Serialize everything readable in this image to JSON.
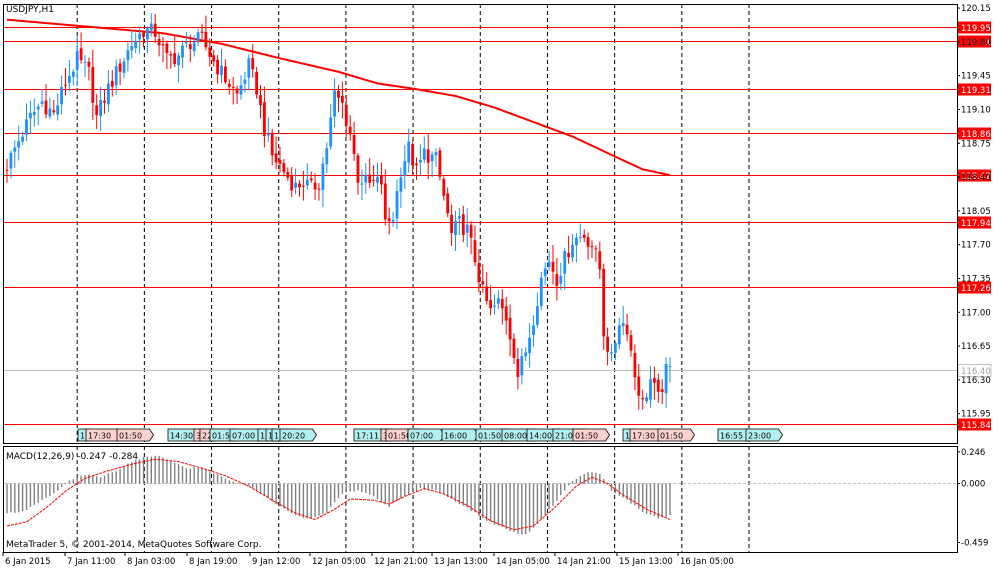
{
  "symbol_label": "USDJPY,H1",
  "copyright": "MetaTrader 5, © 2001-2014, MetaQuotes Software Corp.",
  "colors": {
    "background": "#ffffff",
    "frame": "#000000",
    "bull_candle": "#1e90ff",
    "bear_candle": "#ff0000",
    "moving_average": "#ff0000",
    "level_line": "#ff0000",
    "current_price_line": "#c0c0c0",
    "macd_histogram": "#808080",
    "macd_signal": "#ff0000",
    "event_bull": "#b4f0f0",
    "event_bear": "#ffd2d2"
  },
  "chart_data": [
    {
      "type": "candlestick",
      "title": "USDJPY,H1",
      "xlabel": "",
      "ylabel": "",
      "ylim": [
        115.72,
        120.22
      ],
      "grid": true,
      "y_ticks": [
        "120.15",
        "119.80",
        "119.45",
        "119.10",
        "118.75",
        "118.40",
        "118.05",
        "117.70",
        "117.35",
        "117.00",
        "116.65",
        "116.30",
        "115.95"
      ],
      "x_ticks": [
        "6 Jan 2015",
        "7 Jan 11:00",
        "8 Jan 03:00",
        "8 Jan 19:00",
        "9 Jan 12:00",
        "12 Jan 05:00",
        "12 Jan 21:00",
        "13 Jan 13:00",
        "14 Jan 05:00",
        "14 Jan 21:00",
        "15 Jan 13:00",
        "16 Jan 05:00"
      ],
      "price_levels": [
        "119.95",
        "119.81",
        "119.31",
        "118.86",
        "118.42",
        "117.94",
        "117.26",
        "115.84"
      ],
      "current_price": "116.40",
      "anchors": [
        {
          "bar": 0,
          "value": 118.52
        },
        {
          "bar": 3,
          "value": 118.78
        },
        {
          "bar": 6,
          "value": 119.02
        },
        {
          "bar": 9,
          "value": 119.18
        },
        {
          "bar": 12,
          "value": 119.05
        },
        {
          "bar": 15,
          "value": 119.38
        },
        {
          "bar": 18,
          "value": 119.62
        },
        {
          "bar": 21,
          "value": 119.48
        },
        {
          "bar": 23,
          "value": 119.02
        },
        {
          "bar": 26,
          "value": 119.32
        },
        {
          "bar": 29,
          "value": 119.55
        },
        {
          "bar": 32,
          "value": 119.78
        },
        {
          "bar": 35,
          "value": 119.92
        },
        {
          "bar": 38,
          "value": 119.9
        },
        {
          "bar": 41,
          "value": 119.62
        },
        {
          "bar": 44,
          "value": 119.66
        },
        {
          "bar": 47,
          "value": 119.8
        },
        {
          "bar": 50,
          "value": 119.82
        },
        {
          "bar": 53,
          "value": 119.6
        },
        {
          "bar": 56,
          "value": 119.42
        },
        {
          "bar": 59,
          "value": 119.25
        },
        {
          "bar": 62,
          "value": 119.55
        },
        {
          "bar": 64,
          "value": 119.32
        },
        {
          "bar": 66,
          "value": 118.9
        },
        {
          "bar": 68,
          "value": 118.62
        },
        {
          "bar": 70,
          "value": 118.52
        },
        {
          "bar": 72,
          "value": 118.4
        },
        {
          "bar": 74,
          "value": 118.3
        },
        {
          "bar": 76,
          "value": 118.35
        },
        {
          "bar": 78,
          "value": 118.28
        },
        {
          "bar": 80,
          "value": 118.35
        },
        {
          "bar": 82,
          "value": 118.72
        },
        {
          "bar": 84,
          "value": 119.25
        },
        {
          "bar": 86,
          "value": 119.15
        },
        {
          "bar": 88,
          "value": 118.85
        },
        {
          "bar": 90,
          "value": 118.4
        },
        {
          "bar": 93,
          "value": 118.32
        },
        {
          "bar": 96,
          "value": 118.35
        },
        {
          "bar": 97,
          "value": 117.9
        },
        {
          "bar": 99,
          "value": 118.0
        },
        {
          "bar": 101,
          "value": 118.48
        },
        {
          "bar": 103,
          "value": 118.7
        },
        {
          "bar": 105,
          "value": 118.45
        },
        {
          "bar": 107,
          "value": 118.65
        },
        {
          "bar": 110,
          "value": 118.58
        },
        {
          "bar": 112,
          "value": 118.2
        },
        {
          "bar": 114,
          "value": 117.8
        },
        {
          "bar": 116,
          "value": 117.92
        },
        {
          "bar": 118,
          "value": 117.85
        },
        {
          "bar": 120,
          "value": 117.55
        },
        {
          "bar": 122,
          "value": 117.2
        },
        {
          "bar": 124,
          "value": 117.0
        },
        {
          "bar": 126,
          "value": 117.1
        },
        {
          "bar": 128,
          "value": 116.95
        },
        {
          "bar": 130,
          "value": 116.6
        },
        {
          "bar": 131,
          "value": 116.35
        },
        {
          "bar": 133,
          "value": 116.6
        },
        {
          "bar": 135,
          "value": 116.95
        },
        {
          "bar": 137,
          "value": 117.35
        },
        {
          "bar": 139,
          "value": 117.55
        },
        {
          "bar": 141,
          "value": 117.35
        },
        {
          "bar": 143,
          "value": 117.55
        },
        {
          "bar": 145,
          "value": 117.75
        },
        {
          "bar": 148,
          "value": 117.8
        },
        {
          "bar": 150,
          "value": 117.7
        },
        {
          "bar": 152,
          "value": 117.45
        },
        {
          "bar": 153,
          "value": 116.8
        },
        {
          "bar": 155,
          "value": 116.5
        },
        {
          "bar": 157,
          "value": 116.92
        },
        {
          "bar": 159,
          "value": 116.85
        },
        {
          "bar": 161,
          "value": 116.35
        },
        {
          "bar": 163,
          "value": 116.05
        },
        {
          "bar": 165,
          "value": 116.3
        },
        {
          "bar": 167,
          "value": 116.1
        },
        {
          "bar": 169,
          "value": 116.38
        },
        {
          "bar": 170,
          "value": 116.4
        }
      ],
      "moving_average": [
        {
          "bar": 0,
          "value": 120.03
        },
        {
          "bar": 20,
          "value": 119.96
        },
        {
          "bar": 40,
          "value": 119.89
        },
        {
          "bar": 55,
          "value": 119.78
        },
        {
          "bar": 70,
          "value": 119.63
        },
        {
          "bar": 85,
          "value": 119.49
        },
        {
          "bar": 95,
          "value": 119.37
        },
        {
          "bar": 105,
          "value": 119.31
        },
        {
          "bar": 115,
          "value": 119.24
        },
        {
          "bar": 125,
          "value": 119.12
        },
        {
          "bar": 135,
          "value": 118.97
        },
        {
          "bar": 145,
          "value": 118.82
        },
        {
          "bar": 155,
          "value": 118.63
        },
        {
          "bar": 163,
          "value": 118.48
        },
        {
          "bar": 170,
          "value": 118.42
        }
      ]
    },
    {
      "type": "bar",
      "title": "MACD(12,26,9) -0.247 -0.284",
      "xlabel": "",
      "ylabel": "",
      "ylim": [
        -0.459,
        0.246
      ],
      "y_ticks": [
        "0.246",
        "0.000",
        "-0.459"
      ],
      "histogram_anchors": [
        {
          "bar": 0,
          "value": -0.23
        },
        {
          "bar": 4,
          "value": -0.22
        },
        {
          "bar": 8,
          "value": -0.15
        },
        {
          "bar": 12,
          "value": -0.08
        },
        {
          "bar": 16,
          "value": 0.02
        },
        {
          "bar": 20,
          "value": 0.07
        },
        {
          "bar": 24,
          "value": 0.05
        },
        {
          "bar": 28,
          "value": 0.1
        },
        {
          "bar": 32,
          "value": 0.17
        },
        {
          "bar": 36,
          "value": 0.21
        },
        {
          "bar": 38,
          "value": 0.22
        },
        {
          "bar": 42,
          "value": 0.18
        },
        {
          "bar": 46,
          "value": 0.12
        },
        {
          "bar": 50,
          "value": 0.12
        },
        {
          "bar": 54,
          "value": 0.07
        },
        {
          "bar": 58,
          "value": 0.01
        },
        {
          "bar": 62,
          "value": -0.02
        },
        {
          "bar": 66,
          "value": -0.09
        },
        {
          "bar": 70,
          "value": -0.18
        },
        {
          "bar": 74,
          "value": -0.25
        },
        {
          "bar": 78,
          "value": -0.28
        },
        {
          "bar": 82,
          "value": -0.22
        },
        {
          "bar": 86,
          "value": -0.08
        },
        {
          "bar": 90,
          "value": -0.05
        },
        {
          "bar": 94,
          "value": -0.1
        },
        {
          "bar": 98,
          "value": -0.18
        },
        {
          "bar": 102,
          "value": -0.1
        },
        {
          "bar": 106,
          "value": -0.04
        },
        {
          "bar": 110,
          "value": -0.05
        },
        {
          "bar": 114,
          "value": -0.12
        },
        {
          "bar": 118,
          "value": -0.19
        },
        {
          "bar": 122,
          "value": -0.27
        },
        {
          "bar": 126,
          "value": -0.33
        },
        {
          "bar": 130,
          "value": -0.38
        },
        {
          "bar": 133,
          "value": -0.4
        },
        {
          "bar": 137,
          "value": -0.28
        },
        {
          "bar": 141,
          "value": -0.13
        },
        {
          "bar": 145,
          "value": 0.02
        },
        {
          "bar": 149,
          "value": 0.09
        },
        {
          "bar": 152,
          "value": 0.08
        },
        {
          "bar": 155,
          "value": -0.06
        },
        {
          "bar": 159,
          "value": -0.13
        },
        {
          "bar": 163,
          "value": -0.22
        },
        {
          "bar": 167,
          "value": -0.27
        },
        {
          "bar": 170,
          "value": -0.25
        }
      ],
      "signal_anchors": [
        {
          "bar": 0,
          "value": -0.33
        },
        {
          "bar": 5,
          "value": -0.3
        },
        {
          "bar": 10,
          "value": -0.19
        },
        {
          "bar": 15,
          "value": -0.06
        },
        {
          "bar": 20,
          "value": 0.04
        },
        {
          "bar": 26,
          "value": 0.1
        },
        {
          "bar": 32,
          "value": 0.15
        },
        {
          "bar": 38,
          "value": 0.19
        },
        {
          "bar": 44,
          "value": 0.17
        },
        {
          "bar": 50,
          "value": 0.12
        },
        {
          "bar": 56,
          "value": 0.06
        },
        {
          "bar": 62,
          "value": -0.02
        },
        {
          "bar": 68,
          "value": -0.13
        },
        {
          "bar": 74,
          "value": -0.23
        },
        {
          "bar": 79,
          "value": -0.28
        },
        {
          "bar": 84,
          "value": -0.2
        },
        {
          "bar": 88,
          "value": -0.12
        },
        {
          "bar": 94,
          "value": -0.13
        },
        {
          "bar": 98,
          "value": -0.16
        },
        {
          "bar": 102,
          "value": -0.1
        },
        {
          "bar": 107,
          "value": -0.04
        },
        {
          "bar": 112,
          "value": -0.08
        },
        {
          "bar": 118,
          "value": -0.17
        },
        {
          "bar": 124,
          "value": -0.29
        },
        {
          "bar": 130,
          "value": -0.36
        },
        {
          "bar": 135,
          "value": -0.33
        },
        {
          "bar": 140,
          "value": -0.2
        },
        {
          "bar": 146,
          "value": -0.02
        },
        {
          "bar": 150,
          "value": 0.05
        },
        {
          "bar": 154,
          "value": 0.0
        },
        {
          "bar": 158,
          "value": -0.09
        },
        {
          "bar": 164,
          "value": -0.2
        },
        {
          "bar": 170,
          "value": -0.28
        }
      ]
    }
  ],
  "events": [
    {
      "text": "1",
      "kind": "bull"
    },
    {
      "text": "17:30",
      "kind": "bear"
    },
    {
      "text": "01:50",
      "kind": "bear"
    },
    {
      "text": "14:30",
      "kind": "bull"
    },
    {
      "text": "3",
      "kind": "bear"
    },
    {
      "text": "22",
      "kind": "bear"
    },
    {
      "text": "01:5",
      "kind": "bull"
    },
    {
      "text": "07:00",
      "kind": "bull"
    },
    {
      "text": "1",
      "kind": "bull"
    },
    {
      "text": "1",
      "kind": "bull"
    },
    {
      "text": "17",
      "kind": "bull"
    },
    {
      "text": "20:20",
      "kind": "bull"
    },
    {
      "text": "17:11",
      "kind": "bull"
    },
    {
      "text": "3",
      "kind": "bear"
    },
    {
      "text": "01:50",
      "kind": "bear"
    },
    {
      "text": "07:00",
      "kind": "bull"
    },
    {
      "text": "16:00",
      "kind": "bull"
    },
    {
      "text": "01:50",
      "kind": "bull"
    },
    {
      "text": "08:00",
      "kind": "bull"
    },
    {
      "text": "14:00",
      "kind": "bull"
    },
    {
      "text": "21:00",
      "kind": "bull"
    },
    {
      "text": "01:50",
      "kind": "bear"
    },
    {
      "text": "1",
      "kind": "bull"
    },
    {
      "text": "17:30",
      "kind": "bear"
    },
    {
      "text": "01:50",
      "kind": "bear"
    },
    {
      "text": "16:55",
      "kind": "bull"
    },
    {
      "text": "23:00",
      "kind": "bull"
    }
  ]
}
